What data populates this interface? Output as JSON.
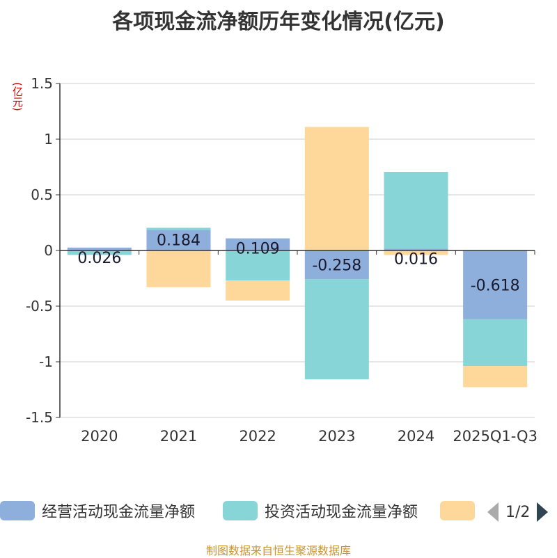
{
  "chart_data": {
    "type": "bar",
    "stacked": true,
    "title": "各项现金流净额历年变化情况(亿元)",
    "ylabel": "(亿元)",
    "xlabel": "",
    "ylim": [
      -1.5,
      1.5
    ],
    "yticks": [
      1.5,
      1,
      0.5,
      0,
      -0.5,
      -1,
      -1.5
    ],
    "ytick_labels": [
      "1.5",
      "1",
      "0.5",
      "0",
      "-0.5",
      "-1",
      "-1.5"
    ],
    "categories": [
      "2020",
      "2021",
      "2022",
      "2023",
      "2024",
      "2025Q1-Q3"
    ],
    "series": [
      {
        "name": "经营活动现金流量净额",
        "color": "#8eaedb",
        "values": [
          0.026,
          0.184,
          0.109,
          -0.258,
          0.016,
          -0.618
        ]
      },
      {
        "name": "投资活动现金流量净额",
        "color": "#88d5d8",
        "values": [
          -0.04,
          0.02,
          -0.27,
          -0.9,
          0.69,
          -0.42
        ]
      },
      {
        "name": "",
        "color": "#fdd89a",
        "values": [
          0.0,
          -0.33,
          -0.18,
          1.11,
          -0.04,
          -0.19
        ]
      }
    ],
    "data_labels": [
      "0.026",
      "0.184",
      "0.109",
      "-0.258",
      "0.016",
      "-0.618"
    ],
    "legend_position": "bottom"
  },
  "legend": {
    "items": [
      "经营活动现金流量净额",
      "投资活动现金流量净额",
      ""
    ],
    "page_text": "1/2"
  },
  "source": "制图数据来自恒生聚源数据库"
}
